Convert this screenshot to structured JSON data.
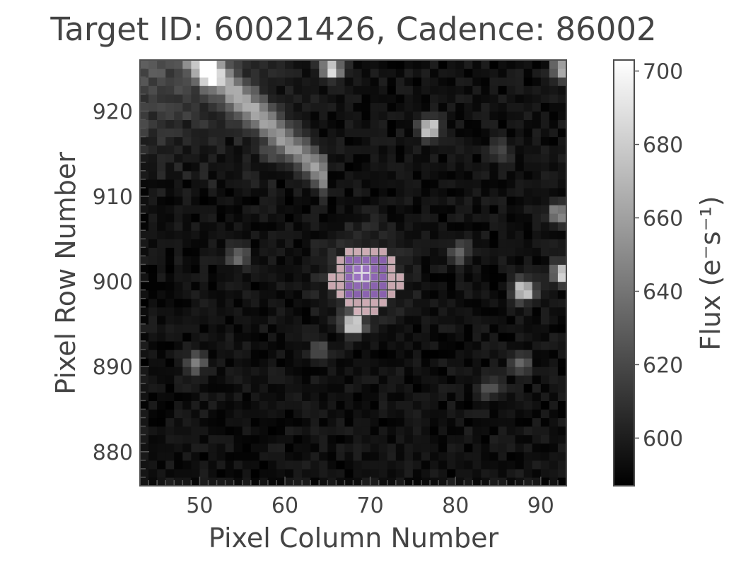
{
  "chart_data": {
    "type": "heatmap",
    "title": "Target ID: 60021426, Cadence: 86002",
    "xlabel": "Pixel Column Number",
    "ylabel": "Pixel Row Number",
    "xlim": [
      43,
      93
    ],
    "ylim": [
      876,
      926
    ],
    "xticks": [
      50,
      60,
      70,
      80,
      90
    ],
    "yticks": [
      880,
      890,
      900,
      910,
      920
    ],
    "grid": false,
    "colormap": "gray",
    "colorbar": {
      "label": "Flux (e⁻s⁻¹)",
      "range": [
        587,
        703
      ],
      "ticks": [
        600,
        620,
        640,
        660,
        680,
        700
      ]
    },
    "background_flux": 594,
    "sources": [
      {
        "col": 69,
        "row": 901,
        "peak_flux": 703,
        "note": "target star"
      },
      {
        "col": 68,
        "row": 895,
        "peak_flux": 703
      },
      {
        "col": 77,
        "row": 918,
        "peak_flux": 703
      },
      {
        "col": 88,
        "row": 899,
        "peak_flux": 700
      },
      {
        "col": 92.5,
        "row": 901,
        "peak_flux": 695
      },
      {
        "col": 92,
        "row": 908,
        "peak_flux": 660
      },
      {
        "col": 49.5,
        "row": 890.5,
        "peak_flux": 650
      },
      {
        "col": 87.5,
        "row": 890.5,
        "peak_flux": 640
      },
      {
        "col": 54.5,
        "row": 903,
        "peak_flux": 640
      },
      {
        "col": 80.5,
        "row": 903.5,
        "peak_flux": 640
      },
      {
        "col": 84,
        "row": 887.5,
        "peak_flux": 630
      },
      {
        "col": 64,
        "row": 892,
        "peak_flux": 625
      },
      {
        "col": 85.5,
        "row": 915.5,
        "peak_flux": 625
      },
      {
        "col": 58,
        "row": 915,
        "peak_flux": 620
      },
      {
        "col": 51,
        "row": 924.5,
        "peak_flux": 700
      },
      {
        "col": 65.5,
        "row": 925,
        "peak_flux": 700
      },
      {
        "col": 92.5,
        "row": 925,
        "peak_flux": 680
      }
    ],
    "aperture": {
      "color": "#f06fa0",
      "inner_color": "#9467bd",
      "outer_pixels": [
        [
          67,
          903
        ],
        [
          68,
          903
        ],
        [
          69,
          903
        ],
        [
          70,
          903
        ],
        [
          71,
          903
        ],
        [
          66,
          902
        ],
        [
          72,
          902
        ],
        [
          66,
          901
        ],
        [
          72,
          901
        ],
        [
          65,
          900
        ],
        [
          66,
          900
        ],
        [
          72,
          900
        ],
        [
          73,
          900
        ],
        [
          65,
          899
        ],
        [
          66,
          899
        ],
        [
          72,
          899
        ],
        [
          73,
          899
        ],
        [
          66,
          898
        ],
        [
          72,
          898
        ],
        [
          67,
          897
        ],
        [
          68,
          897
        ],
        [
          69,
          897
        ],
        [
          70,
          897
        ],
        [
          71,
          897
        ],
        [
          68,
          896
        ],
        [
          69,
          896
        ],
        [
          70,
          896
        ]
      ],
      "inner_pixels": [
        [
          67,
          902
        ],
        [
          68,
          902
        ],
        [
          69,
          902
        ],
        [
          70,
          902
        ],
        [
          71,
          902
        ],
        [
          67,
          901
        ],
        [
          68,
          901
        ],
        [
          69,
          901
        ],
        [
          70,
          901
        ],
        [
          71,
          901
        ],
        [
          67,
          900
        ],
        [
          68,
          900
        ],
        [
          69,
          900
        ],
        [
          70,
          900
        ],
        [
          71,
          900
        ],
        [
          67,
          899
        ],
        [
          68,
          899
        ],
        [
          69,
          899
        ],
        [
          70,
          899
        ],
        [
          71,
          899
        ],
        [
          67,
          898
        ],
        [
          68,
          898
        ],
        [
          69,
          898
        ],
        [
          70,
          898
        ],
        [
          71,
          898
        ]
      ]
    }
  }
}
